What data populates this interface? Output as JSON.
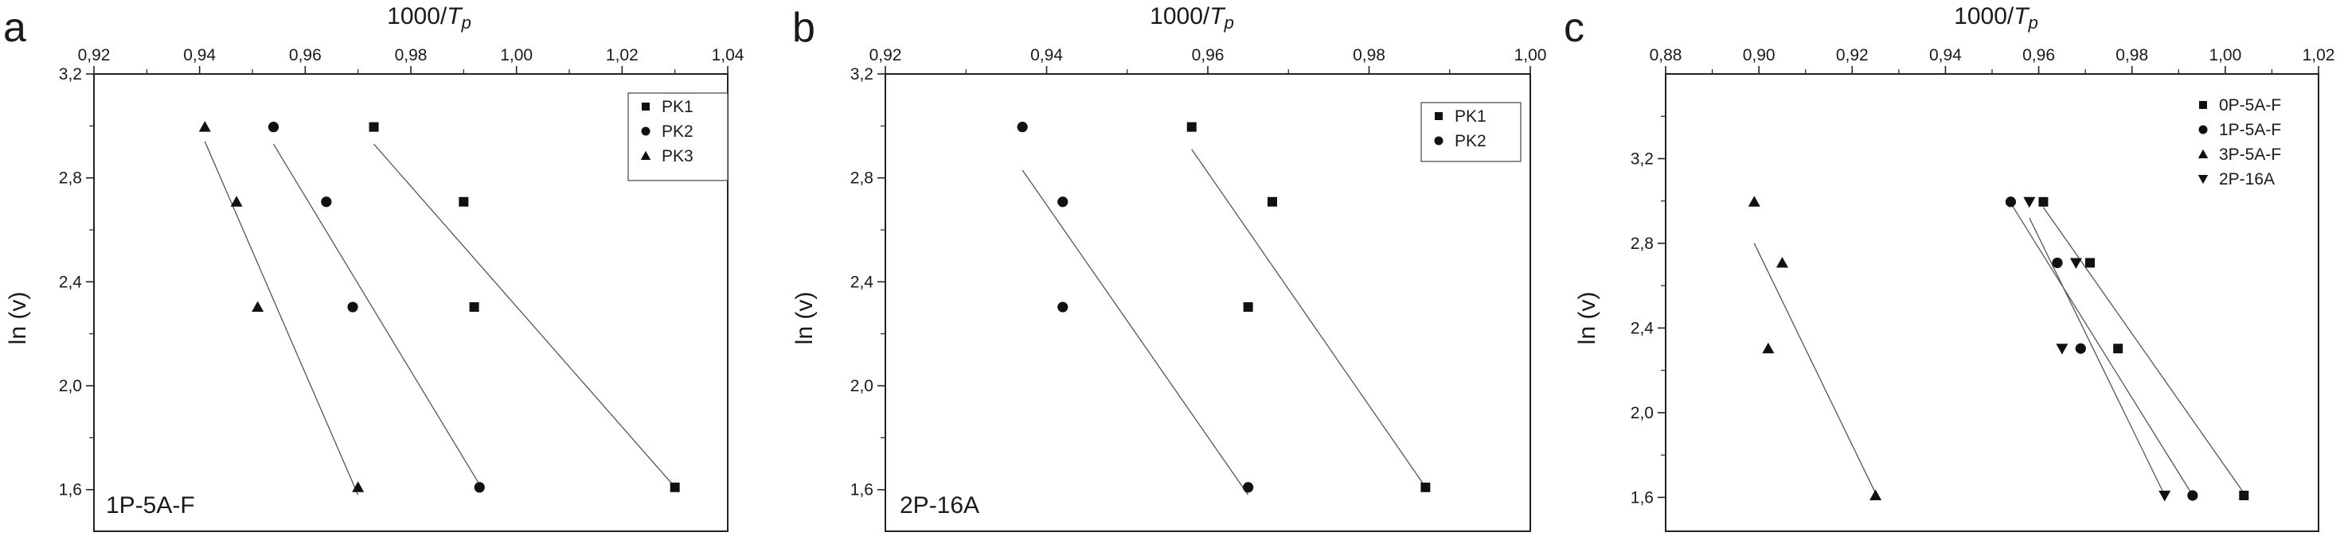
{
  "figure": {
    "panels": [
      {
        "letter": "a",
        "sample_label": "1P-5A-F"
      },
      {
        "letter": "b",
        "sample_label": "2P-16A"
      },
      {
        "letter": "c",
        "sample_label": ""
      }
    ]
  },
  "chart_data": [
    {
      "type": "scatter",
      "title": "",
      "xlabel": "1000/Tp",
      "xlabel_parts": {
        "main": "1000/",
        "italic": "T",
        "sub": "p"
      },
      "ylabel": "ln (v)",
      "xlim": [
        0.92,
        1.04
      ],
      "ylim": [
        1.44,
        3.2
      ],
      "x_ticks": [
        "0,92",
        "0,94",
        "0,96",
        "0,98",
        "1,00",
        "1,02",
        "1,04"
      ],
      "y_ticks": [
        "1,6",
        "2,0",
        "2,4",
        "2,8",
        "3,2"
      ],
      "x_tick_values": [
        0.92,
        0.94,
        0.96,
        0.98,
        1.0,
        1.02,
        1.04
      ],
      "y_tick_values": [
        1.6,
        2.0,
        2.4,
        2.8,
        3.2
      ],
      "legend_position": "top-right",
      "annotation": "1P-5A-F",
      "series": [
        {
          "name": "PK1",
          "marker": "square",
          "points": [
            [
              0.973,
              2.996
            ],
            [
              0.99,
              2.708
            ],
            [
              0.992,
              2.303
            ],
            [
              1.03,
              1.609
            ]
          ],
          "fit": [
            [
              0.973,
              2.93
            ],
            [
              1.03,
              1.61
            ]
          ]
        },
        {
          "name": "PK2",
          "marker": "circle",
          "points": [
            [
              0.954,
              2.996
            ],
            [
              0.964,
              2.708
            ],
            [
              0.969,
              2.303
            ],
            [
              0.993,
              1.609
            ]
          ],
          "fit": [
            [
              0.954,
              2.93
            ],
            [
              0.993,
              1.62
            ]
          ]
        },
        {
          "name": "PK3",
          "marker": "triangle-up",
          "points": [
            [
              0.941,
              2.996
            ],
            [
              0.947,
              2.708
            ],
            [
              0.951,
              2.303
            ],
            [
              0.97,
              1.609
            ]
          ],
          "fit": [
            [
              0.941,
              2.94
            ],
            [
              0.97,
              1.58
            ]
          ]
        }
      ]
    },
    {
      "type": "scatter",
      "title": "",
      "xlabel": "1000/Tp",
      "xlabel_parts": {
        "main": "1000/",
        "italic": "T",
        "sub": "p"
      },
      "ylabel": "ln (v)",
      "xlim": [
        0.92,
        1.0
      ],
      "ylim": [
        1.44,
        3.2
      ],
      "x_ticks": [
        "0,92",
        "0,94",
        "0,96",
        "0,98",
        "1,00"
      ],
      "y_ticks": [
        "1,6",
        "2,0",
        "2,4",
        "2,8",
        "3,2"
      ],
      "x_tick_values": [
        0.92,
        0.94,
        0.96,
        0.98,
        1.0
      ],
      "y_tick_values": [
        1.6,
        2.0,
        2.4,
        2.8,
        3.2
      ],
      "legend_position": "top-right",
      "annotation": "2P-16A",
      "series": [
        {
          "name": "PK1",
          "marker": "square",
          "points": [
            [
              0.958,
              2.996
            ],
            [
              0.968,
              2.708
            ],
            [
              0.965,
              2.303
            ],
            [
              0.987,
              1.609
            ]
          ],
          "fit": [
            [
              0.958,
              2.91
            ],
            [
              0.987,
              1.61
            ]
          ]
        },
        {
          "name": "PK2",
          "marker": "circle",
          "points": [
            [
              0.937,
              2.996
            ],
            [
              0.942,
              2.708
            ],
            [
              0.942,
              2.303
            ],
            [
              0.965,
              1.609
            ]
          ],
          "fit": [
            [
              0.937,
              2.83
            ],
            [
              0.965,
              1.58
            ]
          ]
        }
      ]
    },
    {
      "type": "scatter",
      "title": "",
      "xlabel": "1000/Tp",
      "xlabel_parts": {
        "main": "1000/",
        "italic": "T",
        "sub": "p"
      },
      "ylabel": "ln (v)",
      "xlim": [
        0.88,
        1.02
      ],
      "ylim": [
        1.44,
        3.6
      ],
      "x_ticks": [
        "0,88",
        "0,90",
        "0,92",
        "0,94",
        "0,96",
        "0,98",
        "1,00",
        "1,02"
      ],
      "y_ticks": [
        "1,6",
        "2,0",
        "2,4",
        "2,8",
        "3,2"
      ],
      "x_tick_values": [
        0.88,
        0.9,
        0.92,
        0.94,
        0.96,
        0.98,
        1.0,
        1.02
      ],
      "y_tick_values": [
        1.6,
        2.0,
        2.4,
        2.8,
        3.2
      ],
      "legend_position": "top-right",
      "annotation": "",
      "series": [
        {
          "name": "0P-5A-F",
          "marker": "square",
          "points": [
            [
              0.961,
              2.996
            ],
            [
              0.971,
              2.708
            ],
            [
              0.977,
              2.303
            ],
            [
              1.004,
              1.609
            ]
          ],
          "fit": [
            [
              0.961,
              2.97
            ],
            [
              1.004,
              1.62
            ]
          ]
        },
        {
          "name": "1P-5A-F",
          "marker": "circle",
          "points": [
            [
              0.954,
              2.996
            ],
            [
              0.964,
              2.708
            ],
            [
              0.969,
              2.303
            ],
            [
              0.993,
              1.609
            ]
          ],
          "fit": [
            [
              0.954,
              2.99
            ],
            [
              0.993,
              1.61
            ]
          ]
        },
        {
          "name": "3P-5A-F",
          "marker": "triangle-up",
          "points": [
            [
              0.899,
              2.996
            ],
            [
              0.905,
              2.708
            ],
            [
              0.902,
              2.303
            ],
            [
              0.925,
              1.609
            ]
          ],
          "fit": [
            [
              0.899,
              2.8
            ],
            [
              0.925,
              1.62
            ]
          ]
        },
        {
          "name": "2P-16A",
          "marker": "triangle-down",
          "points": [
            [
              0.958,
              2.996
            ],
            [
              0.968,
              2.708
            ],
            [
              0.965,
              2.303
            ],
            [
              0.987,
              1.609
            ]
          ],
          "fit": [
            [
              0.958,
              2.92
            ],
            [
              0.987,
              1.61
            ]
          ]
        }
      ]
    }
  ]
}
